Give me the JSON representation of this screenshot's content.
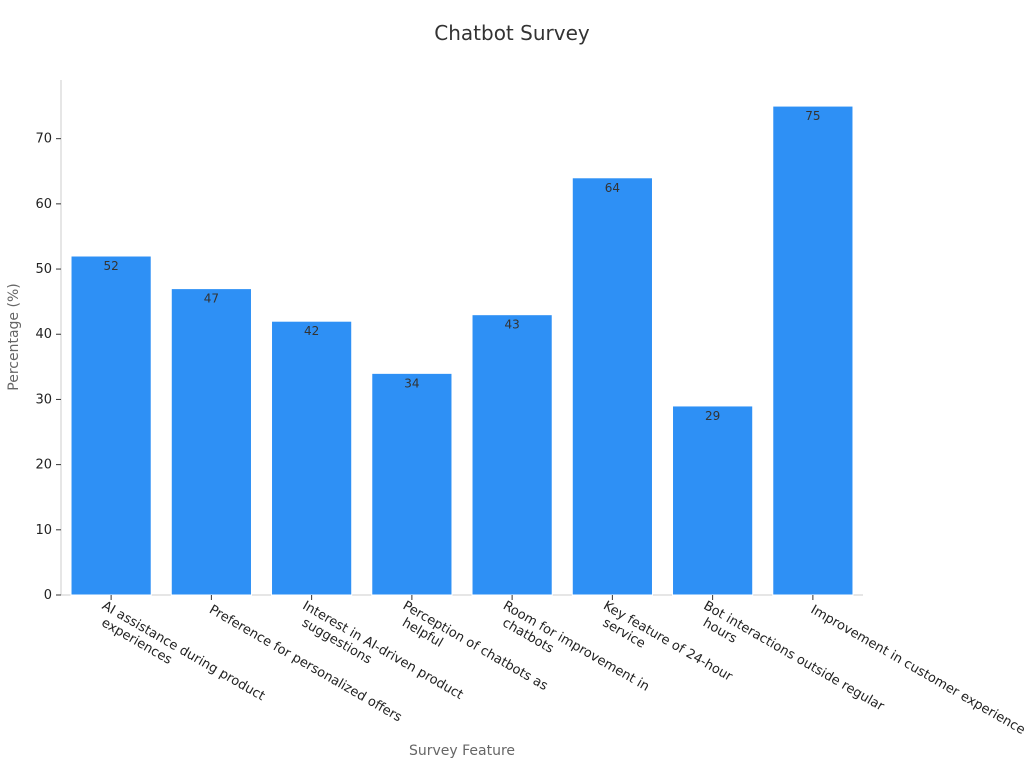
{
  "chart_data": {
    "type": "bar",
    "title": "Chatbot Survey",
    "xlabel": "Survey Feature",
    "ylabel": "Percentage (%)",
    "categories": [
      [
        "AI assistance during product",
        "experiences"
      ],
      [
        "Preference for personalized offers"
      ],
      [
        "Interest in AI-driven product",
        "suggestions"
      ],
      [
        "Perception of chatbots as",
        "helpful"
      ],
      [
        "Room for improvement in",
        "chatbots"
      ],
      [
        "Key feature of 24-hour",
        "service"
      ],
      [
        "Bot interactions outside regular",
        "hours"
      ],
      [
        "Improvement in customer experience"
      ]
    ],
    "values": [
      52,
      47,
      42,
      34,
      43,
      64,
      29,
      75
    ],
    "ylim": [
      0,
      79
    ],
    "yticks": [
      0,
      10,
      20,
      30,
      40,
      50,
      60,
      70
    ],
    "bar_color": "#2e90f5",
    "grid": false,
    "legend": "none"
  }
}
